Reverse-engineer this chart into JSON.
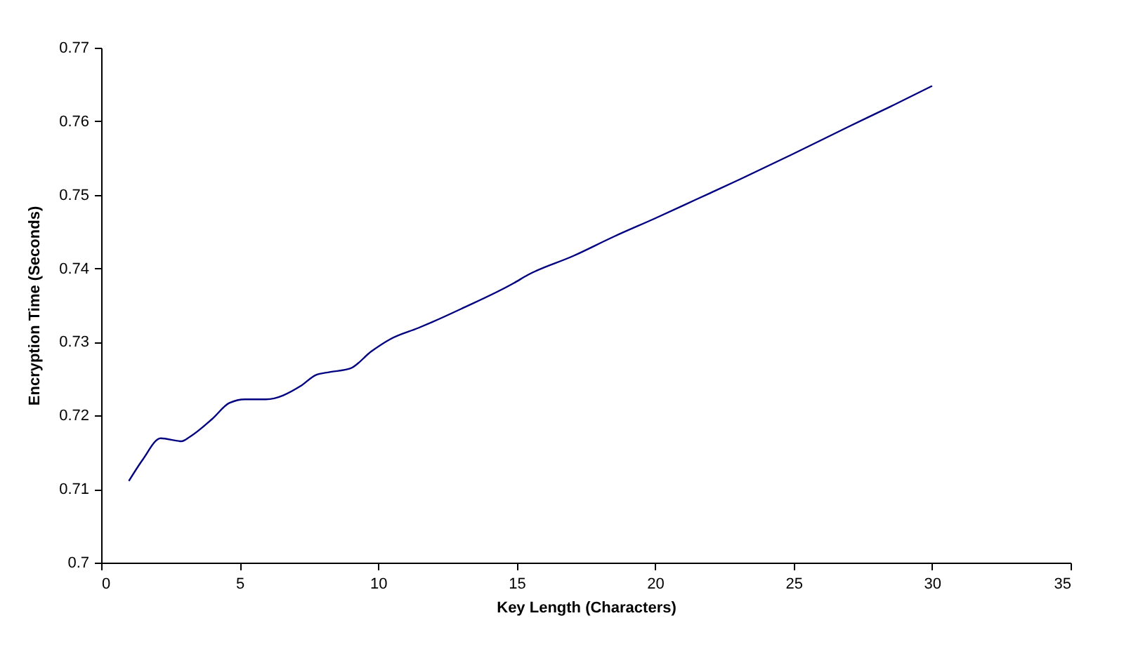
{
  "chart_data": {
    "type": "line",
    "xlabel": "Key Length (Characters)",
    "ylabel": "Encryption Time (Seconds)",
    "xlim": [
      0,
      35
    ],
    "xticks": [
      0,
      5,
      10,
      15,
      20,
      25,
      30,
      35
    ],
    "ylim": [
      0.7,
      0.77
    ],
    "yticks": [
      {
        "value": 0.7,
        "label": "0.7"
      },
      0.71,
      0.72,
      0.73,
      0.74,
      0.75,
      0.76,
      0.77
    ],
    "grid": false,
    "x": [
      1,
      1.5,
      2.15,
      2.9,
      3.2,
      4,
      4.63,
      5.2,
      5.95,
      7.2,
      7.75,
      8.25,
      9,
      9.75,
      10.45,
      11.45,
      11.95,
      13,
      14.9,
      15.4,
      17.05,
      18.5,
      20,
      21.5,
      23,
      24.95,
      26.95,
      28.5,
      30
    ],
    "series": [
      {
        "color": "#000080",
        "values": [
          0.7111,
          0.714,
          0.7169,
          0.7165,
          0.7171,
          0.7195,
          0.7217,
          0.7222,
          0.7222,
          0.724,
          0.7255,
          0.7259,
          0.7264,
          0.7287,
          0.7304,
          0.7319,
          0.7327,
          0.7345,
          0.738,
          0.7391,
          0.7417,
          0.7443,
          0.7468,
          0.7494,
          0.752,
          0.7555,
          0.7592,
          0.762,
          0.7648
        ]
      }
    ]
  }
}
